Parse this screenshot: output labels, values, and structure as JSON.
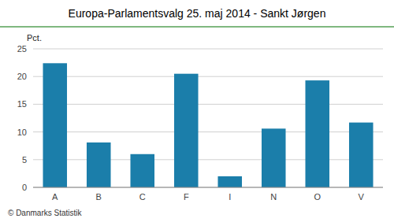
{
  "chart_data": {
    "type": "bar",
    "title": "Europa-Parlamentsvalg 25. maj 2014 - Sankt Jørgen",
    "categories": [
      "A",
      "B",
      "C",
      "F",
      "I",
      "N",
      "O",
      "V"
    ],
    "values": [
      22.4,
      8.1,
      6.0,
      20.5,
      2.0,
      10.6,
      19.3,
      11.7
    ],
    "color": "#1b7eaa",
    "ylabel": "Pct.",
    "ylim": [
      0,
      25
    ],
    "yticks": [
      0,
      5,
      10,
      15,
      20,
      25
    ],
    "grid": true,
    "annotations": [
      "© Danmarks Statistik"
    ]
  }
}
